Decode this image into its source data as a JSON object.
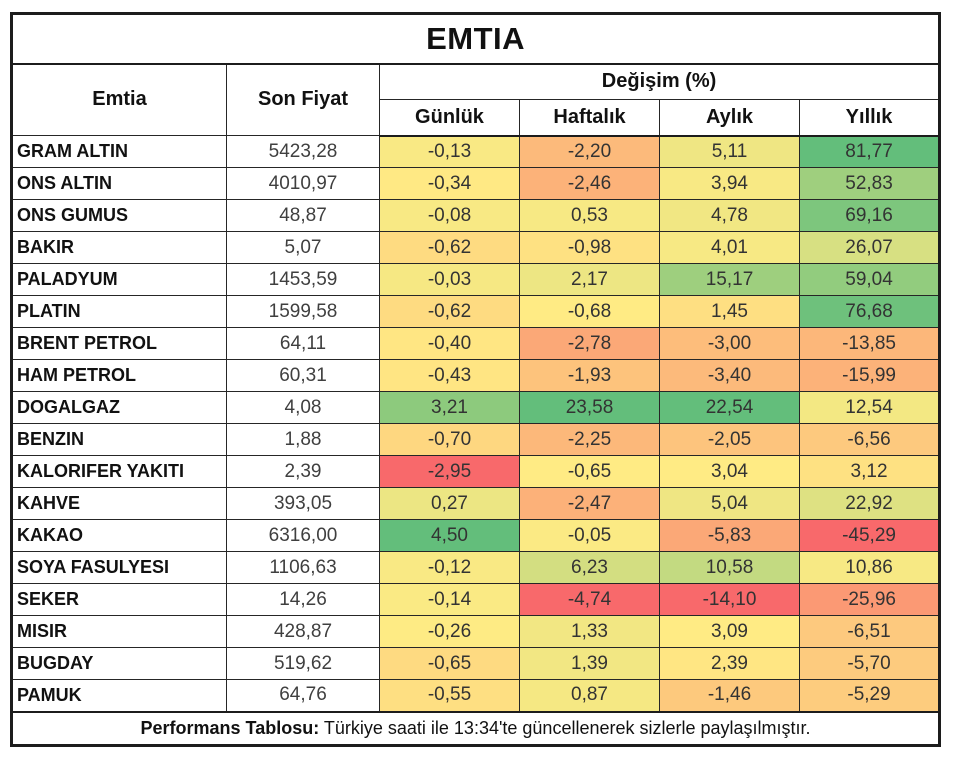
{
  "chart_data": {
    "type": "table",
    "title": "EMTIA",
    "header": {
      "commodity": "Emtia",
      "last_price": "Son Fiyat",
      "change_group": "Değişim (%)",
      "periods": [
        "Günlük",
        "Haftalık",
        "Aylık",
        "Yıllık"
      ]
    },
    "rows": [
      {
        "name": "GRAM ALTIN",
        "price": "5423,28",
        "changes": [
          "-0,13",
          "-2,20",
          "5,11",
          "81,77"
        ]
      },
      {
        "name": "ONS ALTIN",
        "price": "4010,97",
        "changes": [
          "-0,34",
          "-2,46",
          "3,94",
          "52,83"
        ]
      },
      {
        "name": "ONS GUMUS",
        "price": "48,87",
        "changes": [
          "-0,08",
          "0,53",
          "4,78",
          "69,16"
        ]
      },
      {
        "name": "BAKIR",
        "price": "5,07",
        "changes": [
          "-0,62",
          "-0,98",
          "4,01",
          "26,07"
        ]
      },
      {
        "name": "PALADYUM",
        "price": "1453,59",
        "changes": [
          "-0,03",
          "2,17",
          "15,17",
          "59,04"
        ]
      },
      {
        "name": "PLATIN",
        "price": "1599,58",
        "changes": [
          "-0,62",
          "-0,68",
          "1,45",
          "76,68"
        ]
      },
      {
        "name": "BRENT PETROL",
        "price": "64,11",
        "changes": [
          "-0,40",
          "-2,78",
          "-3,00",
          "-13,85"
        ]
      },
      {
        "name": "HAM PETROL",
        "price": "60,31",
        "changes": [
          "-0,43",
          "-1,93",
          "-3,40",
          "-15,99"
        ]
      },
      {
        "name": "DOGALGAZ",
        "price": "4,08",
        "changes": [
          "3,21",
          "23,58",
          "22,54",
          "12,54"
        ]
      },
      {
        "name": "BENZIN",
        "price": "1,88",
        "changes": [
          "-0,70",
          "-2,25",
          "-2,05",
          "-6,56"
        ]
      },
      {
        "name": "KALORIFER YAKITI",
        "price": "2,39",
        "changes": [
          "-2,95",
          "-0,65",
          "3,04",
          "3,12"
        ]
      },
      {
        "name": "KAHVE",
        "price": "393,05",
        "changes": [
          "0,27",
          "-2,47",
          "5,04",
          "22,92"
        ]
      },
      {
        "name": "KAKAO",
        "price": "6316,00",
        "changes": [
          "4,50",
          "-0,05",
          "-5,83",
          "-45,29"
        ]
      },
      {
        "name": "SOYA FASULYESI",
        "price": "1106,63",
        "changes": [
          "-0,12",
          "6,23",
          "10,58",
          "10,86"
        ]
      },
      {
        "name": "SEKER",
        "price": "14,26",
        "changes": [
          "-0,14",
          "-4,74",
          "-14,10",
          "-25,96"
        ]
      },
      {
        "name": "MISIR",
        "price": "428,87",
        "changes": [
          "-0,26",
          "1,33",
          "3,09",
          "-6,51"
        ]
      },
      {
        "name": "BUGDAY",
        "price": "519,62",
        "changes": [
          "-0,65",
          "1,39",
          "2,39",
          "-5,70"
        ]
      },
      {
        "name": "PAMUK",
        "price": "64,76",
        "changes": [
          "-0,55",
          "0,87",
          "-1,46",
          "-5,29"
        ]
      }
    ],
    "footer": {
      "label": "Performans Tablosu:",
      "text": " Türkiye saati ile 13:34'te güncellenerek sizlerle paylaşılmıştır."
    },
    "color_scale": {
      "mode": "per-column-3-color",
      "min_color": "#F8696B",
      "mid_color": "#FFEB84",
      "max_color": "#63BE7B"
    }
  }
}
